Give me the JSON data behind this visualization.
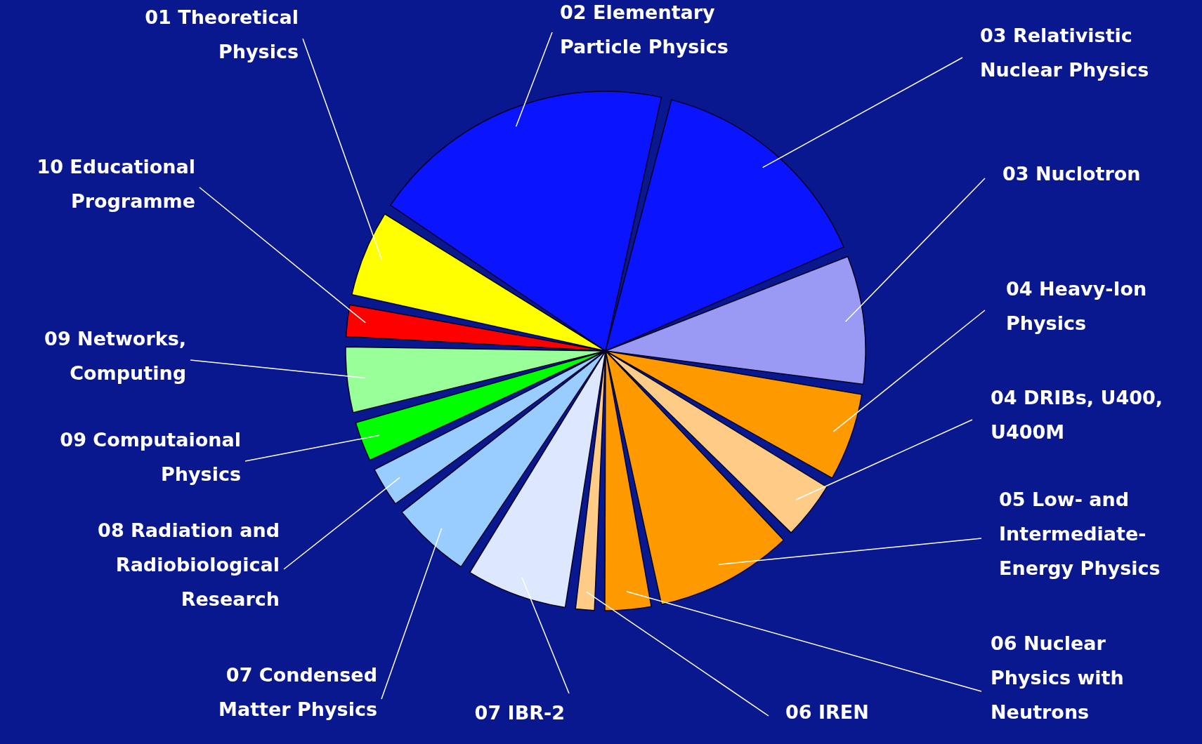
{
  "chart_data": {
    "type": "pie",
    "categories": [
      "02 Elementary Particle Physics",
      "03 Relativistic Nuclear Physics",
      "03 Nuclotron",
      "04 Heavy-Ion Physics",
      "04 DRIBs, U400, U400M",
      "05 Low- and Intermediate-Energy Physics",
      "06 Nuclear Physics with Neutrons",
      "06 IREN",
      "07 IBR-2",
      "07 Condensed Matter Physics",
      "08 Radiation and Radiobiological Research",
      "09  Computaional Physics",
      "09 Networks, Computing",
      "10 Educational Programme",
      "01 Theoretical Physics"
    ],
    "values": [
      19.6,
      15.0,
      8.6,
      6.1,
      4.2,
      9.2,
      3.5,
      1.8,
      6.9,
      5.6,
      3.1,
      3.1,
      4.7,
      2.6,
      6.0
    ],
    "colors": [
      "#0a14ff",
      "#0a14ff",
      "#9a9af5",
      "#ff9900",
      "#ffcc88",
      "#ff9900",
      "#ff9900",
      "#ffcc88",
      "#dde8ff",
      "#99ccff",
      "#99ccff",
      "#00ff00",
      "#99ff99",
      "#ff0000",
      "#ffff00"
    ]
  }
}
